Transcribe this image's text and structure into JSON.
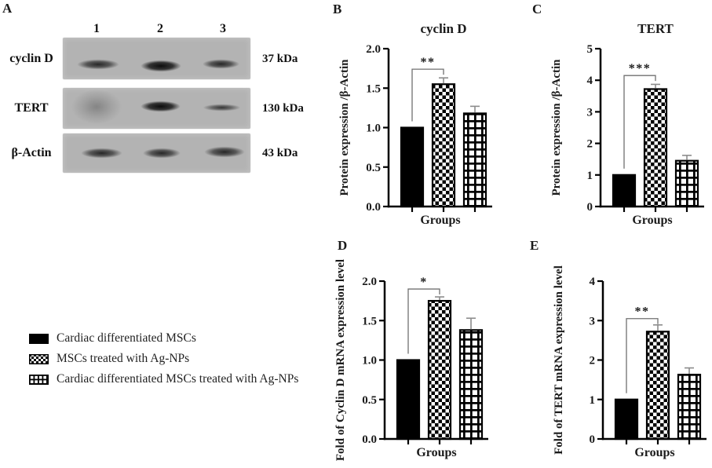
{
  "panels": {
    "a": "A",
    "b": "B",
    "c": "C",
    "d": "D",
    "e": "E"
  },
  "blot": {
    "lane_numbers": [
      "1",
      "2",
      "3"
    ],
    "rows": [
      {
        "label": "cyclin D",
        "kda": "37 kDa"
      },
      {
        "label": "TERT",
        "kda": "130 kDa"
      },
      {
        "label": "β-Actin",
        "kda": "43 kDa"
      }
    ]
  },
  "legend": {
    "items": [
      {
        "swatch": "solid-black",
        "label": "Cardiac differentiated MSCs"
      },
      {
        "swatch": "checkerboard",
        "label": "MSCs treated with Ag-NPs"
      },
      {
        "swatch": "grid",
        "label": "Cardiac differentiated MSCs treated with Ag-NPs"
      }
    ]
  },
  "colors": {
    "bar_fill": "#000000",
    "error_bar": "#8c8c8c",
    "sig_bracket": "#707070",
    "blot_background": "#b3b3b3",
    "text": "#1a1a1a"
  },
  "chart_data": [
    {
      "id": "B",
      "type": "bar",
      "title": "cyclin D",
      "xlabel": "Groups",
      "ylabel": "Protein expression /β-Actin",
      "ylim": [
        0,
        2
      ],
      "yticks": [
        "0.0",
        "0.5",
        "1.0",
        "1.5",
        "2.0"
      ],
      "categories": [
        "Cardiac differentiated MSCs",
        "MSCs treated with Ag-NPs",
        "Cardiac differentiated MSCs treated with Ag-NPs"
      ],
      "values": [
        1.0,
        1.55,
        1.18
      ],
      "errors": [
        0,
        0.08,
        0.09
      ],
      "significance": {
        "stars": "**",
        "from": 0,
        "to": 1,
        "level": 1.74
      },
      "grid": false,
      "legend_position": "figure-bottom-left"
    },
    {
      "id": "C",
      "type": "bar",
      "title": "TERT",
      "xlabel": "Groups",
      "ylabel": "Protein expression /β-Actin",
      "ylim": [
        0,
        5
      ],
      "yticks": [
        "0",
        "1",
        "2",
        "3",
        "4",
        "5"
      ],
      "categories": [
        "Cardiac differentiated MSCs",
        "MSCs treated with Ag-NPs",
        "Cardiac differentiated MSCs treated with Ag-NPs"
      ],
      "values": [
        1.0,
        3.72,
        1.45
      ],
      "errors": [
        0,
        0.15,
        0.17
      ],
      "significance": {
        "stars": "***",
        "from": 0,
        "to": 1,
        "level": 4.15
      },
      "grid": false,
      "legend_position": "figure-bottom-left"
    },
    {
      "id": "D",
      "type": "bar",
      "title": "",
      "xlabel": "Groups",
      "ylabel": "Fold of Cyclin D mRNA expression level",
      "ylim": [
        0,
        2
      ],
      "yticks": [
        "0.0",
        "0.5",
        "1.0",
        "1.5",
        "2.0"
      ],
      "categories": [
        "Cardiac differentiated MSCs",
        "MSCs treated with Ag-NPs",
        "Cardiac differentiated MSCs treated with Ag-NPs"
      ],
      "values": [
        1.0,
        1.75,
        1.38
      ],
      "errors": [
        0,
        0.05,
        0.15
      ],
      "significance": {
        "stars": "*",
        "from": 0,
        "to": 1,
        "level": 1.9
      },
      "grid": false,
      "legend_position": "figure-bottom-left"
    },
    {
      "id": "E",
      "type": "bar",
      "title": "",
      "xlabel": "Groups",
      "ylabel": "Fold of TERT mRNA expression level",
      "ylim": [
        0,
        4
      ],
      "yticks": [
        "0",
        "1",
        "2",
        "3",
        "4"
      ],
      "categories": [
        "Cardiac differentiated MSCs",
        "MSCs treated with Ag-NPs",
        "Cardiac differentiated MSCs treated with Ag-NPs"
      ],
      "values": [
        1.0,
        2.72,
        1.63
      ],
      "errors": [
        0,
        0.17,
        0.17
      ],
      "significance": {
        "stars": "**",
        "from": 0,
        "to": 1,
        "level": 3.05
      },
      "grid": false,
      "legend_position": "figure-bottom-left"
    }
  ]
}
